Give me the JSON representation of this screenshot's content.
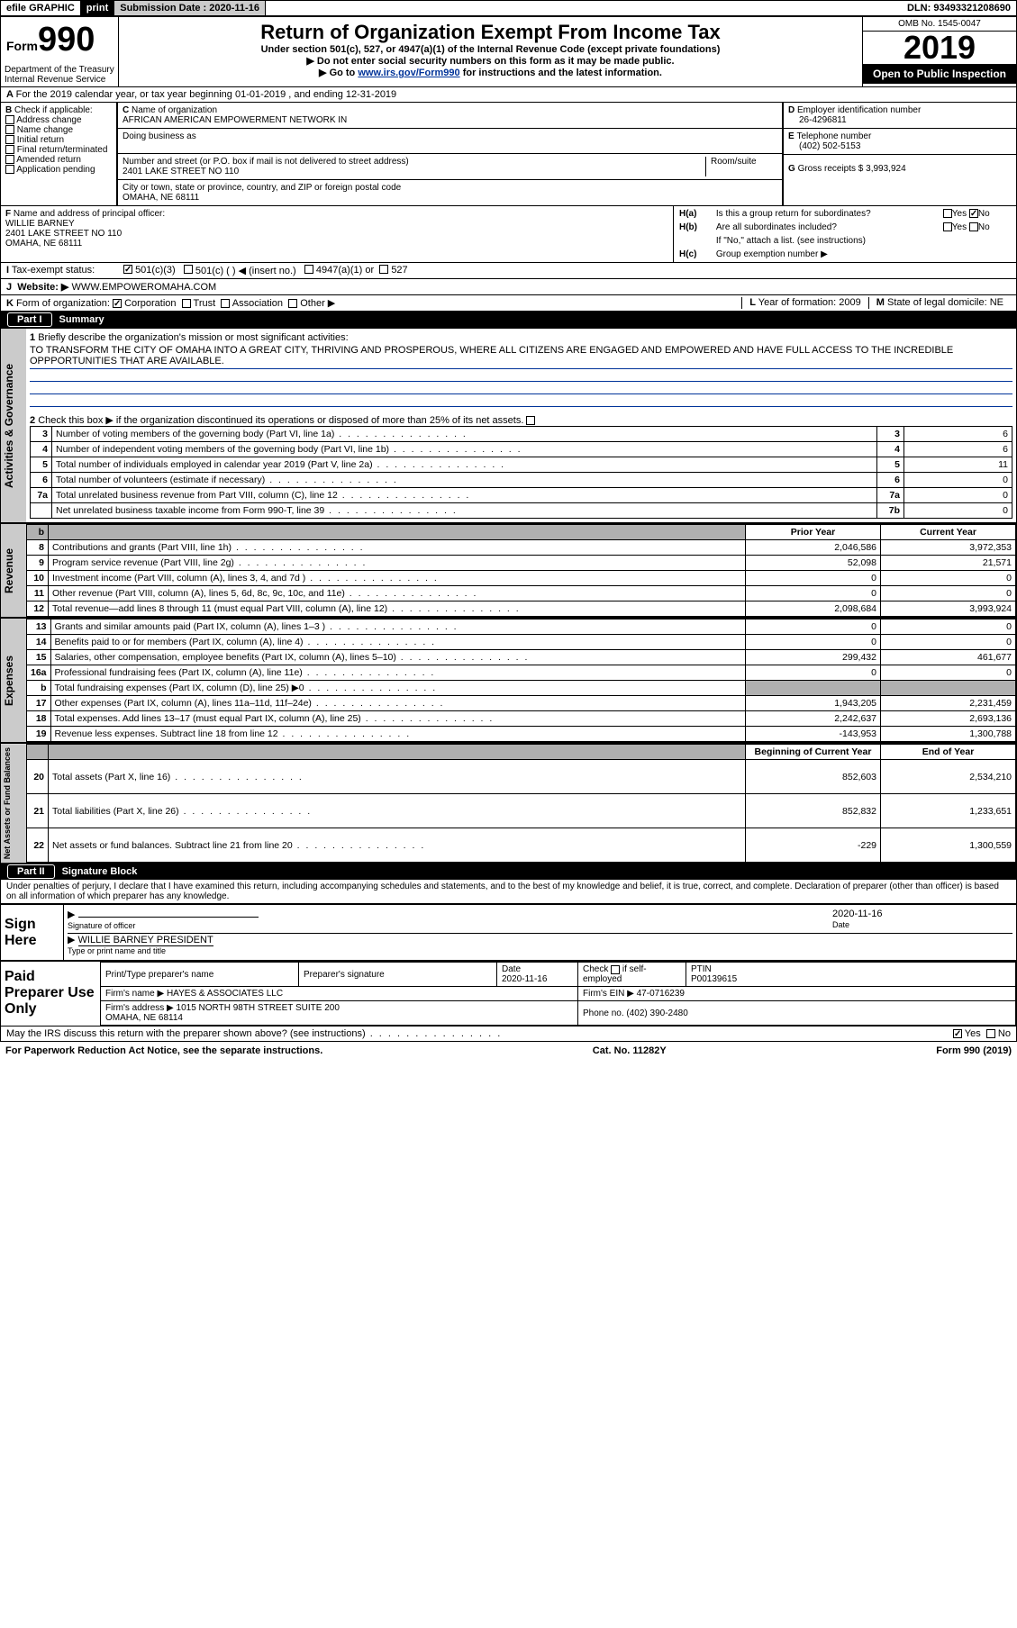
{
  "topbar": {
    "efile": "efile GRAPHIC",
    "print": "print",
    "sub_label": "Submission Date : ",
    "sub_date": "2020-11-16",
    "dln_label": "DLN: ",
    "dln": "93493321208690"
  },
  "header": {
    "form_prefix": "Form",
    "form_num": "990",
    "title": "Return of Organization Exempt From Income Tax",
    "sub1": "Under section 501(c), 527, or 4947(a)(1) of the Internal Revenue Code (except private foundations)",
    "sub2": "Do not enter social security numbers on this form as it may be made public.",
    "sub3_pre": "Go to ",
    "sub3_link": "www.irs.gov/Form990",
    "sub3_post": " for instructions and the latest information.",
    "omb": "OMB No. 1545-0047",
    "year": "2019",
    "open": "Open to Public Inspection",
    "dept": "Department of the Treasury\nInternal Revenue Service"
  },
  "lineA": "For the 2019 calendar year, or tax year beginning 01-01-2019     , and ending 12-31-2019",
  "boxB": {
    "label": "Check if applicable:",
    "items": [
      "Address change",
      "Name change",
      "Initial return",
      "Final return/terminated",
      "Amended return",
      "Application pending"
    ]
  },
  "boxC": {
    "c_label": "Name of organization",
    "org": "AFRICAN AMERICAN EMPOWERMENT NETWORK IN",
    "dba_label": "Doing business as",
    "addr_label": "Number and street (or P.O. box if mail is not delivered to street address)",
    "room_label": "Room/suite",
    "addr": "2401 LAKE STREET NO 110",
    "city_label": "City or town, state or province, country, and ZIP or foreign postal code",
    "city": "OMAHA, NE  68111"
  },
  "boxD": {
    "label": "Employer identification number",
    "val": "26-4296811"
  },
  "boxE": {
    "label": "Telephone number",
    "val": "(402) 502-5153"
  },
  "boxG": {
    "label": "Gross receipts $ ",
    "val": "3,993,924"
  },
  "boxF": {
    "label": "Name and address of principal officer:",
    "name": "WILLIE BARNEY",
    "addr": "2401 LAKE STREET NO 110\nOMAHA, NE  68111"
  },
  "boxH": {
    "a": "Is this a group return for subordinates?",
    "b": "Are all subordinates included?",
    "b_note": "If \"No,\" attach a list. (see instructions)",
    "c": "Group exemption number ▶"
  },
  "tax_status": {
    "label": "Tax-exempt status:",
    "opts": [
      "501(c)(3)",
      "501(c) (  ) ◀ (insert no.)",
      "4947(a)(1) or",
      "527"
    ]
  },
  "boxJ": {
    "label": "Website: ▶",
    "val": "WWW.EMPOWEROMAHA.COM"
  },
  "boxK": {
    "label": "Form of organization:",
    "opts": [
      "Corporation",
      "Trust",
      "Association",
      "Other ▶"
    ]
  },
  "boxL": {
    "label": "Year of formation:",
    "val": "2009"
  },
  "boxM": {
    "label": "State of legal domicile:",
    "val": "NE"
  },
  "part1": {
    "title": "Part I",
    "name": "Summary",
    "mission_label": "Briefly describe the organization's mission or most significant activities:",
    "mission": "TO TRANSFORM THE CITY OF OMAHA INTO A GREAT CITY, THRIVING AND PROSPEROUS, WHERE ALL CITIZENS ARE ENGAGED AND EMPOWERED AND HAVE FULL ACCESS TO THE INCREDIBLE OPPPORTUNITIES THAT ARE AVAILABLE.",
    "line2": "Check this box ▶        if the organization discontinued its operations or disposed of more than 25% of its net assets.",
    "gov_rows": [
      {
        "n": "3",
        "t": "Number of voting members of the governing body (Part VI, line 1a)",
        "box": "3",
        "v": "6"
      },
      {
        "n": "4",
        "t": "Number of independent voting members of the governing body (Part VI, line 1b)",
        "box": "4",
        "v": "6"
      },
      {
        "n": "5",
        "t": "Total number of individuals employed in calendar year 2019 (Part V, line 2a)",
        "box": "5",
        "v": "11"
      },
      {
        "n": "6",
        "t": "Total number of volunteers (estimate if necessary)",
        "box": "6",
        "v": "0"
      },
      {
        "n": "7a",
        "t": "Total unrelated business revenue from Part VIII, column (C), line 12",
        "box": "7a",
        "v": "0"
      },
      {
        "n": "",
        "t": "Net unrelated business taxable income from Form 990-T, line 39",
        "box": "7b",
        "v": "0"
      }
    ],
    "col_hdr": [
      "Prior Year",
      "Current Year"
    ],
    "rev_rows": [
      {
        "n": "8",
        "t": "Contributions and grants (Part VIII, line 1h)",
        "py": "2,046,586",
        "cy": "3,972,353"
      },
      {
        "n": "9",
        "t": "Program service revenue (Part VIII, line 2g)",
        "py": "52,098",
        "cy": "21,571"
      },
      {
        "n": "10",
        "t": "Investment income (Part VIII, column (A), lines 3, 4, and 7d )",
        "py": "0",
        "cy": "0"
      },
      {
        "n": "11",
        "t": "Other revenue (Part VIII, column (A), lines 5, 6d, 8c, 9c, 10c, and 11e)",
        "py": "0",
        "cy": "0"
      },
      {
        "n": "12",
        "t": "Total revenue—add lines 8 through 11 (must equal Part VIII, column (A), line 12)",
        "py": "2,098,684",
        "cy": "3,993,924"
      }
    ],
    "exp_rows": [
      {
        "n": "13",
        "t": "Grants and similar amounts paid (Part IX, column (A), lines 1–3 )",
        "py": "0",
        "cy": "0"
      },
      {
        "n": "14",
        "t": "Benefits paid to or for members (Part IX, column (A), line 4)",
        "py": "0",
        "cy": "0"
      },
      {
        "n": "15",
        "t": "Salaries, other compensation, employee benefits (Part IX, column (A), lines 5–10)",
        "py": "299,432",
        "cy": "461,677"
      },
      {
        "n": "16a",
        "t": "Professional fundraising fees (Part IX, column (A), line 11e)",
        "py": "0",
        "cy": "0"
      },
      {
        "n": "b",
        "t": "Total fundraising expenses (Part IX, column (D), line 25) ▶0",
        "py": "",
        "cy": "",
        "shade": true
      },
      {
        "n": "17",
        "t": "Other expenses (Part IX, column (A), lines 11a–11d, 11f–24e)",
        "py": "1,943,205",
        "cy": "2,231,459"
      },
      {
        "n": "18",
        "t": "Total expenses. Add lines 13–17 (must equal Part IX, column (A), line 25)",
        "py": "2,242,637",
        "cy": "2,693,136"
      },
      {
        "n": "19",
        "t": "Revenue less expenses. Subtract line 18 from line 12",
        "py": "-143,953",
        "cy": "1,300,788"
      }
    ],
    "na_hdr": [
      "Beginning of Current Year",
      "End of Year"
    ],
    "na_rows": [
      {
        "n": "20",
        "t": "Total assets (Part X, line 16)",
        "py": "852,603",
        "cy": "2,534,210"
      },
      {
        "n": "21",
        "t": "Total liabilities (Part X, line 26)",
        "py": "852,832",
        "cy": "1,233,651"
      },
      {
        "n": "22",
        "t": "Net assets or fund balances. Subtract line 21 from line 20",
        "py": "-229",
        "cy": "1,300,559"
      }
    ],
    "sidebar": [
      "Activities & Governance",
      "Revenue",
      "Expenses",
      "Net Assets or Fund Balances"
    ]
  },
  "part2": {
    "title": "Part II",
    "name": "Signature Block",
    "perjury": "Under penalties of perjury, I declare that I have examined this return, including accompanying schedules and statements, and to the best of my knowledge and belief, it is true, correct, and complete. Declaration of preparer (other than officer) is based on all information of which preparer has any knowledge.",
    "sign_here": "Sign Here",
    "sig_officer": "Signature of officer",
    "date_label": "Date",
    "sig_date": "2020-11-16",
    "officer_name": "WILLIE BARNEY PRESIDENT",
    "type_name": "Type or print name and title",
    "paid": "Paid Preparer Use Only",
    "prep_hdrs": [
      "Print/Type preparer's name",
      "Preparer's signature",
      "Date",
      "Check         if self-employed",
      "PTIN"
    ],
    "prep_date": "2020-11-16",
    "ptin": "P00139615",
    "firm_label": "Firm's name    ▶",
    "firm": "HAYES & ASSOCIATES LLC",
    "ein_label": "Firm's EIN ▶",
    "ein": "47-0716239",
    "addr_label": "Firm's address ▶",
    "firm_addr": "1015 NORTH 98TH STREET SUITE 200\nOMAHA, NE  68114",
    "phone_label": "Phone no.",
    "phone": "(402) 390-2480",
    "discuss": "May the IRS discuss this return with the preparer shown above? (see instructions)"
  },
  "footer": {
    "left": "For Paperwork Reduction Act Notice, see the separate instructions.",
    "mid": "Cat. No. 11282Y",
    "right": "Form 990 (2019)"
  }
}
